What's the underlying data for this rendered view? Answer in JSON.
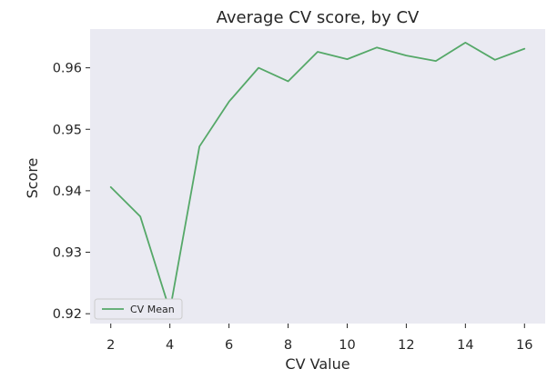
{
  "chart_data": {
    "type": "line",
    "title": "Average CV score, by CV",
    "xlabel": "CV Value",
    "ylabel": "Score",
    "x": [
      2,
      3,
      4,
      5,
      6,
      7,
      8,
      9,
      10,
      11,
      12,
      13,
      14,
      15,
      16
    ],
    "series": [
      {
        "name": "CV Mean",
        "color": "#55a868",
        "values": [
          0.9406,
          0.9358,
          0.9205,
          0.9472,
          0.9545,
          0.96,
          0.9578,
          0.9626,
          0.9614,
          0.9633,
          0.962,
          0.9611,
          0.9641,
          0.9613,
          0.9631
        ]
      }
    ],
    "xlim": [
      1.3,
      16.7
    ],
    "ylim": [
      0.9184,
      0.9663
    ],
    "xticks": [
      2,
      4,
      6,
      8,
      10,
      12,
      14,
      16
    ],
    "yticks": [
      0.92,
      0.93,
      0.94,
      0.95,
      0.96
    ],
    "ytick_labels": [
      "0.92",
      "0.93",
      "0.94",
      "0.95",
      "0.96"
    ],
    "grid": false,
    "legend_position": "lower-left",
    "background_color": "#eaeaf2"
  }
}
